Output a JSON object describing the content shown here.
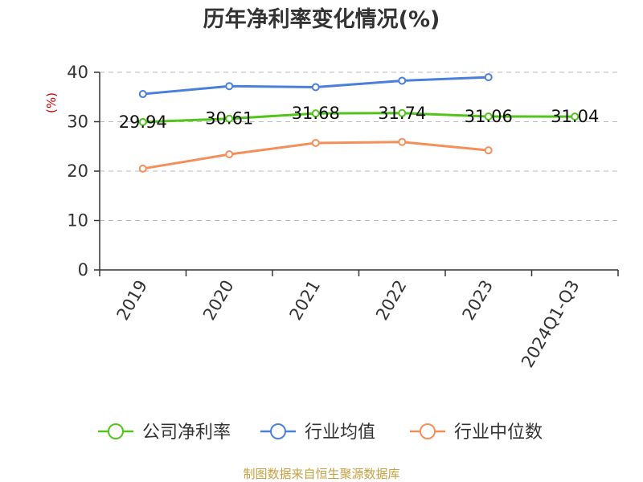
{
  "chart_data": {
    "type": "line",
    "title": "历年净利率变化情况(%)",
    "ylabel": "(%)",
    "xlabel": "",
    "categories": [
      "2019",
      "2020",
      "2021",
      "2022",
      "2023",
      "2024Q1-Q3"
    ],
    "ylim": [
      0,
      40
    ],
    "yticks": [
      0,
      10,
      20,
      30,
      40
    ],
    "ytick_labels": [
      "0",
      "10",
      "20",
      "30",
      "40"
    ],
    "grid": true,
    "legend_position": "bottom",
    "series": [
      {
        "key": "company",
        "name": "公司净利率",
        "color": "#52c41a",
        "values": [
          29.94,
          30.61,
          31.68,
          31.74,
          31.06,
          31.04
        ],
        "labels": [
          "29.94",
          "30.61",
          "31.68",
          "31.74",
          "31.06",
          "31.04"
        ]
      },
      {
        "key": "industry_avg",
        "name": "行业均值",
        "color": "#4a7fdc",
        "values": [
          35.6,
          37.2,
          37.0,
          38.3,
          39.0,
          null
        ]
      },
      {
        "key": "industry_median",
        "name": "行业中位数",
        "color": "#f58f5a",
        "values": [
          20.5,
          23.4,
          25.7,
          25.9,
          24.2,
          null
        ]
      }
    ]
  },
  "source": "制图数据来自恒生聚源数据库",
  "colors": {
    "title": "#333333",
    "axis": "#333333",
    "ylabel": "#cc0000",
    "grid": "#bbbbbb",
    "source": "#c8a040"
  }
}
